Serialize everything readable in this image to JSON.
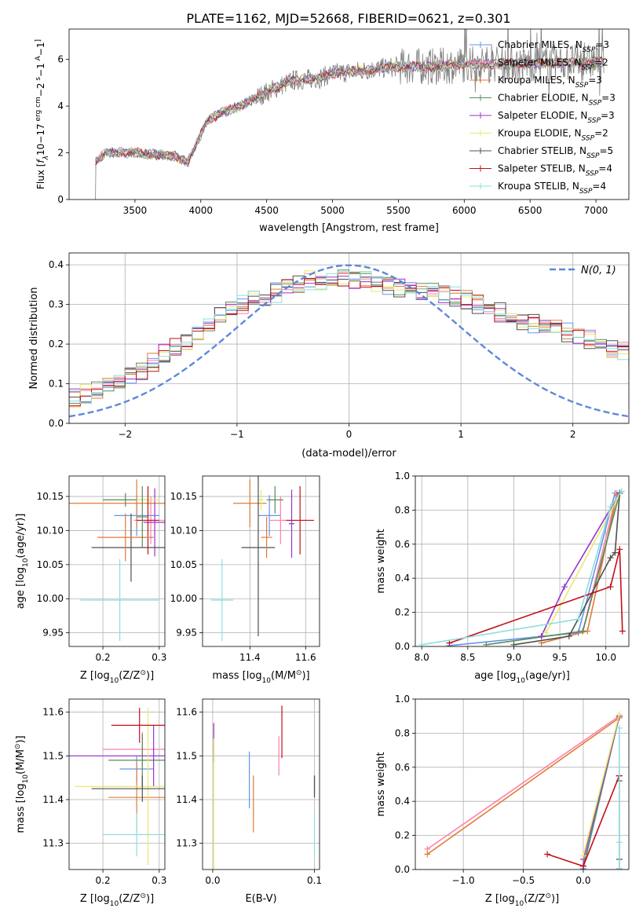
{
  "figure": {
    "title": "PLATE=1162, MJD=52668, FIBERID=0621, z=0.301"
  },
  "colors": {
    "c1": "#6495ed",
    "c2": "#ff7fa8",
    "c3": "#e07b39",
    "c4": "#5a8a5a",
    "c5": "#9932cc",
    "c6": "#e8e870",
    "c7": "#505050",
    "c8": "#c0101a",
    "c9": "#8ddde0",
    "data": "#808080",
    "normal": "#5b8ad8"
  },
  "chart_data": [
    {
      "id": "spectrum",
      "type": "line",
      "xlabel": "wavelength [Angstrom, rest frame]",
      "ylabel_parts": [
        "Flux [",
        "f",
        "λ",
        "10",
        "−17",
        " erg cm",
        "−2",
        " s",
        "−1",
        " A",
        "−1",
        "]"
      ],
      "xlim": [
        3000,
        7250
      ],
      "ylim": [
        0,
        7.3
      ],
      "xticks": [
        3500,
        4000,
        4500,
        5000,
        5500,
        6000,
        6500,
        7000
      ],
      "xtick_labels": [
        "3500",
        "4000",
        "4500",
        "5000",
        "5500",
        "6000",
        "6500",
        "7000"
      ],
      "yticks": [
        0,
        2,
        4,
        6
      ],
      "ytick_labels": [
        "0",
        "2",
        "4",
        "6"
      ],
      "continuum_knots": [
        [
          3200,
          1.6
        ],
        [
          3280,
          2.0
        ],
        [
          3500,
          2.0
        ],
        [
          3700,
          1.9
        ],
        [
          3800,
          1.85
        ],
        [
          3900,
          1.6
        ],
        [
          3960,
          2.3
        ],
        [
          4050,
          3.4
        ],
        [
          4150,
          3.7
        ],
        [
          4300,
          4.0
        ],
        [
          4500,
          4.6
        ],
        [
          4700,
          5.1
        ],
        [
          4900,
          5.2
        ],
        [
          5000,
          5.4
        ],
        [
          5200,
          5.5
        ],
        [
          5500,
          5.7
        ],
        [
          5800,
          5.7
        ],
        [
          6000,
          5.8
        ],
        [
          6300,
          5.8
        ],
        [
          6700,
          5.85
        ],
        [
          7060,
          5.9
        ]
      ],
      "data_range": [
        3200,
        7060
      ],
      "legend": [
        {
          "name": "Chabrier MILES",
          "nssp": "=3",
          "color": "c1"
        },
        {
          "name": "Salpeter MILES",
          "nssp": "=2",
          "color": "c2"
        },
        {
          "name": "Kroupa MILES",
          "nssp": "=3",
          "color": "c3"
        },
        {
          "name": "Chabrier ELODIE",
          "nssp": "=3",
          "color": "c4"
        },
        {
          "name": "Salpeter ELODIE",
          "nssp": "=3",
          "color": "c5"
        },
        {
          "name": "Kroupa ELODIE",
          "nssp": "=2",
          "color": "c6"
        },
        {
          "name": "Chabrier STELIB",
          "nssp": "=5",
          "color": "c7"
        },
        {
          "name": "Salpeter STELIB",
          "nssp": "=4",
          "color": "c8"
        },
        {
          "name": "Kroupa STELIB",
          "nssp": "=4",
          "color": "c9"
        }
      ],
      "legend_placement": "upper right",
      "grid": false
    },
    {
      "id": "residuals",
      "type": "histogram",
      "xlabel": "(data-model)/error",
      "ylabel": "Normed distribution",
      "xlim": [
        -2.5,
        2.5
      ],
      "ylim": [
        0,
        0.43
      ],
      "xticks": [
        -2,
        -1,
        0,
        1,
        2
      ],
      "xtick_labels": [
        "−2",
        "−1",
        "0",
        "1",
        "2"
      ],
      "yticks": [
        0,
        0.1,
        0.2,
        0.3,
        0.4
      ],
      "ytick_labels": [
        "0.0",
        "0.1",
        "0.2",
        "0.3",
        "0.4"
      ],
      "bin_width": 0.1,
      "base_values": [
        0.02,
        0.025,
        0.03,
        0.04,
        0.05,
        0.055,
        0.065,
        0.075,
        0.085,
        0.095,
        0.11,
        0.12,
        0.135,
        0.155,
        0.175,
        0.19,
        0.21,
        0.225,
        0.245,
        0.27,
        0.285,
        0.3,
        0.315,
        0.32,
        0.33,
        0.34,
        0.35,
        0.36,
        0.36,
        0.37,
        0.365,
        0.365,
        0.36,
        0.355,
        0.35,
        0.34,
        0.335,
        0.33,
        0.33,
        0.325,
        0.32,
        0.31,
        0.3,
        0.29,
        0.28,
        0.27,
        0.26,
        0.25,
        0.245,
        0.24,
        0.23,
        0.22,
        0.21,
        0.2,
        0.19,
        0.18,
        0.17,
        0.16,
        0.15,
        0.145,
        0.135,
        0.125,
        0.115,
        0.105,
        0.095,
        0.085,
        0.08,
        0.07,
        0.065,
        0.06,
        0.055,
        0.05,
        0.045,
        0.04
      ],
      "normal_label": "N(0, 1)",
      "legend_placement": "upper right",
      "grid": true
    },
    {
      "id": "age_vs_Z",
      "type": "errorbar",
      "xlabel_parts": [
        "Z [log",
        "10",
        "(Z/Z",
        "⊙",
        ")]"
      ],
      "ylabel_parts": [
        "age  [log",
        "10",
        "(age/yr)]"
      ],
      "xlim": [
        0.14,
        0.31
      ],
      "ylim": [
        9.93,
        10.18
      ],
      "xticks": [
        0.2,
        0.3
      ],
      "xtick_labels": [
        "0.2",
        "0.3"
      ],
      "yticks": [
        9.95,
        10.0,
        10.05,
        10.1,
        10.15
      ],
      "ytick_labels": [
        "9.95",
        "10.00",
        "10.05",
        "10.10",
        "10.15"
      ],
      "points": [
        {
          "color": "c1",
          "x": 0.26,
          "xerr": 0.04,
          "y": 10.122,
          "yerr": 0.03
        },
        {
          "color": "c2",
          "x": 0.285,
          "xerr": 0.03,
          "y": 10.115,
          "yerr": 0.035
        },
        {
          "color": "c3",
          "x": 0.26,
          "xerr": 0.12,
          "y": 10.14,
          "yerr": 0.035
        },
        {
          "color": "c4",
          "x": 0.24,
          "xerr": 0.04,
          "y": 10.145,
          "yerr": 0.01
        },
        {
          "color": "c5",
          "x": 0.292,
          "xerr": 0.02,
          "y": 10.112,
          "yerr": 0.05
        },
        {
          "color": "c6",
          "x": 0.28,
          "xerr": 0.02,
          "y": 10.145,
          "yerr": 0.02
        },
        {
          "color": "c7",
          "x": 0.25,
          "xerr": 0.07,
          "y": 10.075,
          "yerr": 0.05
        },
        {
          "color": "c8",
          "x": 0.28,
          "xerr": 0.02,
          "y": 10.115,
          "yerr": 0.05
        },
        {
          "color": "c9",
          "x": 0.23,
          "xerr": 0.07,
          "y": 9.998,
          "yerr": 0.06
        },
        {
          "color": "c3",
          "x": 0.24,
          "xerr": 0.05,
          "y": 10.09,
          "yerr": 0.035
        },
        {
          "color": "c4",
          "x": 0.27,
          "xerr": 0.01,
          "y": 10.12,
          "yerr": 0.045
        }
      ],
      "grid": true
    },
    {
      "id": "age_vs_mass",
      "type": "errorbar",
      "xlabel_parts": [
        "mass [log",
        "10",
        "(M/M",
        "⊙",
        ")]"
      ],
      "xlim": [
        11.23,
        11.65
      ],
      "ylim": [
        9.93,
        10.18
      ],
      "xticks": [
        11.4,
        11.6
      ],
      "xtick_labels": [
        "11.4",
        "11.6"
      ],
      "yticks": [
        9.95,
        10.0,
        10.05,
        10.1,
        10.15
      ],
      "ytick_labels": [
        "9.95",
        "10.00",
        "10.05",
        "10.10",
        "10.15"
      ],
      "points": [
        {
          "color": "c1",
          "x": 11.47,
          "xerr": 0.04,
          "y": 10.122,
          "yerr": 0.03
        },
        {
          "color": "c2",
          "x": 11.51,
          "xerr": 0.04,
          "y": 10.115,
          "yerr": 0.035
        },
        {
          "color": "c3",
          "x": 11.4,
          "xerr": 0.06,
          "y": 10.14,
          "yerr": 0.035
        },
        {
          "color": "c4",
          "x": 11.49,
          "xerr": 0.03,
          "y": 10.145,
          "yerr": 0.02
        },
        {
          "color": "c5",
          "x": 11.55,
          "xerr": 0.01,
          "y": 10.11,
          "yerr": 0.05
        },
        {
          "color": "c6",
          "x": 11.44,
          "xerr": 0.01,
          "y": 10.145,
          "yerr": 0.015
        },
        {
          "color": "c7",
          "x": 11.43,
          "xerr": 0.06,
          "y": 10.075,
          "yerr": 0.13
        },
        {
          "color": "c8",
          "x": 11.58,
          "xerr": 0.05,
          "y": 10.115,
          "yerr": 0.05
        },
        {
          "color": "c9",
          "x": 11.3,
          "xerr": 0.04,
          "y": 9.998,
          "yerr": 0.06
        },
        {
          "color": "c3",
          "x": 11.46,
          "xerr": 0.02,
          "y": 10.09,
          "yerr": 0.03
        }
      ],
      "grid": true
    },
    {
      "id": "mass_weight_vs_age",
      "type": "line",
      "xlabel_parts": [
        "age  [log",
        "10",
        "(age/yr)]"
      ],
      "ylabel": "mass weight",
      "xlim": [
        7.93,
        10.25
      ],
      "ylim": [
        0,
        1
      ],
      "xticks": [
        8.0,
        8.5,
        9.0,
        9.5,
        10.0
      ],
      "xtick_labels": [
        "8.0",
        "8.5",
        "9.0",
        "9.5",
        "10.0"
      ],
      "yticks": [
        0,
        0.2,
        0.4,
        0.6,
        0.8,
        1.0
      ],
      "ytick_labels": [
        "0.0",
        "0.2",
        "0.4",
        "0.6",
        "0.8",
        "1.0"
      ],
      "series": [
        {
          "color": "c1",
          "points": [
            [
              8.3,
              0.005
            ],
            [
              9.7,
              0.08
            ],
            [
              10.1,
              0.9
            ]
          ]
        },
        {
          "color": "c2",
          "points": [
            [
              9.75,
              0.09
            ],
            [
              10.12,
              0.9
            ]
          ]
        },
        {
          "color": "c3",
          "points": [
            [
              9.3,
              0.02
            ],
            [
              9.8,
              0.09
            ],
            [
              10.12,
              0.89
            ]
          ]
        },
        {
          "color": "c4",
          "points": [
            [
              8.7,
              0.01
            ],
            [
              9.75,
              0.09
            ],
            [
              10.15,
              0.9
            ]
          ]
        },
        {
          "color": "c5",
          "points": [
            [
              9.3,
              0.06
            ],
            [
              9.55,
              0.35
            ],
            [
              10.15,
              0.9
            ]
          ]
        },
        {
          "color": "c6",
          "points": [
            [
              9.35,
              0.08
            ],
            [
              10.17,
              0.91
            ]
          ]
        },
        {
          "color": "c7",
          "points": [
            [
              9.0,
              0.01
            ],
            [
              9.6,
              0.06
            ],
            [
              10.05,
              0.52
            ],
            [
              10.1,
              0.55
            ],
            [
              10.15,
              0.9
            ]
          ]
        },
        {
          "color": "c8",
          "points": [
            [
              8.3,
              0.02
            ],
            [
              10.05,
              0.35
            ],
            [
              10.15,
              0.57
            ],
            [
              10.18,
              0.09
            ]
          ]
        },
        {
          "color": "c9",
          "points": [
            [
              8.0,
              0.01
            ],
            [
              9.7,
              0.16
            ],
            [
              10.05,
              0.82
            ],
            [
              10.17,
              0.91
            ]
          ]
        }
      ],
      "grid": true
    },
    {
      "id": "mass_vs_Z",
      "type": "errorbar",
      "xlabel_parts": [
        "Z [log",
        "10",
        "(Z/Z",
        "⊙",
        ")]"
      ],
      "ylabel_parts": [
        "mass [log",
        "10",
        "(M/M",
        "⊙",
        ")]"
      ],
      "xlim": [
        0.14,
        0.31
      ],
      "ylim": [
        11.24,
        11.63
      ],
      "xticks": [
        0.2,
        0.3
      ],
      "xtick_labels": [
        "0.2",
        "0.3"
      ],
      "yticks": [
        11.3,
        11.4,
        11.5,
        11.6
      ],
      "ytick_labels": [
        "11.3",
        "11.4",
        "11.5",
        "11.6"
      ],
      "points": [
        {
          "color": "c1",
          "x": 0.26,
          "xerr": 0.03,
          "y": 11.47,
          "yerr": 0.03
        },
        {
          "color": "c2",
          "x": 0.27,
          "xerr": 0.07,
          "y": 11.515,
          "yerr": 0.04
        },
        {
          "color": "c3",
          "x": 0.26,
          "xerr": 0.05,
          "y": 11.405,
          "yerr": 0.08
        },
        {
          "color": "c4",
          "x": 0.27,
          "xerr": 0.06,
          "y": 11.49,
          "yerr": 0.06
        },
        {
          "color": "c5",
          "x": 0.29,
          "xerr": 0.15,
          "y": 11.5,
          "yerr": 0.07
        },
        {
          "color": "c6",
          "x": 0.28,
          "xerr": 0.13,
          "y": 11.43,
          "yerr": 0.18
        },
        {
          "color": "c7",
          "x": 0.27,
          "xerr": 0.09,
          "y": 11.425,
          "yerr": 0.03
        },
        {
          "color": "c8",
          "x": 0.265,
          "xerr": 0.05,
          "y": 11.57,
          "yerr": 0.04
        },
        {
          "color": "c9",
          "x": 0.26,
          "xerr": 0.06,
          "y": 11.32,
          "yerr": 0.05
        }
      ],
      "grid": true
    },
    {
      "id": "mass_vs_ebv",
      "type": "errorbar",
      "xlabel": "E(B-V)",
      "xlim": [
        -0.01,
        0.105
      ],
      "ylim": [
        11.24,
        11.63
      ],
      "xticks": [
        0.0,
        0.1
      ],
      "xtick_labels": [
        "0.0",
        "0.1"
      ],
      "yticks": [
        11.3,
        11.4,
        11.5,
        11.6
      ],
      "ytick_labels": [
        "11.3",
        "11.4",
        "11.5",
        "11.6"
      ],
      "points": [
        {
          "color": "c1",
          "x": 0.036,
          "y": 11.445,
          "yerr": 0.065
        },
        {
          "color": "c2",
          "x": 0.065,
          "y": 11.5,
          "yerr": 0.045
        },
        {
          "color": "c3",
          "x": 0.04,
          "y": 11.39,
          "yerr": 0.065
        },
        {
          "color": "c4",
          "x": 0.1,
          "y": 11.43,
          "yerr": 0.025
        },
        {
          "color": "c5",
          "x": 0.001,
          "y": 11.53,
          "yerr": 0.045
        },
        {
          "color": "c6",
          "x": 0.001,
          "y": 11.39,
          "yerr": 0.15
        },
        {
          "color": "c7",
          "x": 0.1,
          "y": 11.43,
          "yerr": 0.025
        },
        {
          "color": "c8",
          "x": 0.068,
          "y": 11.555,
          "yerr": 0.06
        },
        {
          "color": "c9",
          "x": 0.1,
          "y": 11.32,
          "yerr": 0.05
        }
      ],
      "grid": true
    },
    {
      "id": "mass_weight_vs_Z",
      "type": "line",
      "xlabel_parts": [
        "Z [log",
        "10",
        "(Z/Z",
        "⊙",
        ")]"
      ],
      "ylabel": "mass weight",
      "xlim": [
        -1.4,
        0.38
      ],
      "ylim": [
        0,
        1
      ],
      "xticks": [
        -1.0,
        -0.5,
        0.0
      ],
      "xtick_labels": [
        "−1.0",
        "−0.5",
        "0.0"
      ],
      "yticks": [
        0,
        0.2,
        0.4,
        0.6,
        0.8,
        1.0
      ],
      "ytick_labels": [
        "0.0",
        "0.2",
        "0.4",
        "0.6",
        "0.8",
        "1.0"
      ],
      "series": [
        {
          "color": "c1",
          "points": [
            [
              0.0,
              0.005
            ],
            [
              0.3,
              0.9
            ]
          ]
        },
        {
          "color": "c2",
          "points": [
            [
              -1.3,
              0.12
            ],
            [
              0.3,
              0.9
            ]
          ]
        },
        {
          "color": "c3",
          "points": [
            [
              -1.3,
              0.09
            ],
            [
              0.3,
              0.89
            ]
          ]
        },
        {
          "color": "c4",
          "points": [
            [
              0.0,
              0.02
            ],
            [
              0.3,
              0.9
            ]
          ]
        },
        {
          "color": "c5",
          "points": [
            [
              0.0,
              0.06
            ],
            [
              0.3,
              0.9
            ]
          ]
        },
        {
          "color": "c6",
          "points": [
            [
              0.0,
              0.08
            ],
            [
              0.3,
              0.91
            ]
          ]
        },
        {
          "color": "c7",
          "points": [
            [
              0.3,
              0.005
            ],
            [
              0.3,
              0.06
            ],
            [
              0.3,
              0.52
            ],
            [
              0.3,
              0.55
            ]
          ]
        },
        {
          "color": "c8",
          "points": [
            [
              -0.3,
              0.09
            ],
            [
              0.0,
              0.02
            ],
            [
              0.3,
              0.55
            ]
          ]
        },
        {
          "color": "c9",
          "points": [
            [
              0.3,
              0.005
            ],
            [
              0.3,
              0.16
            ],
            [
              0.3,
              0.83
            ]
          ]
        }
      ],
      "grid": true
    }
  ]
}
